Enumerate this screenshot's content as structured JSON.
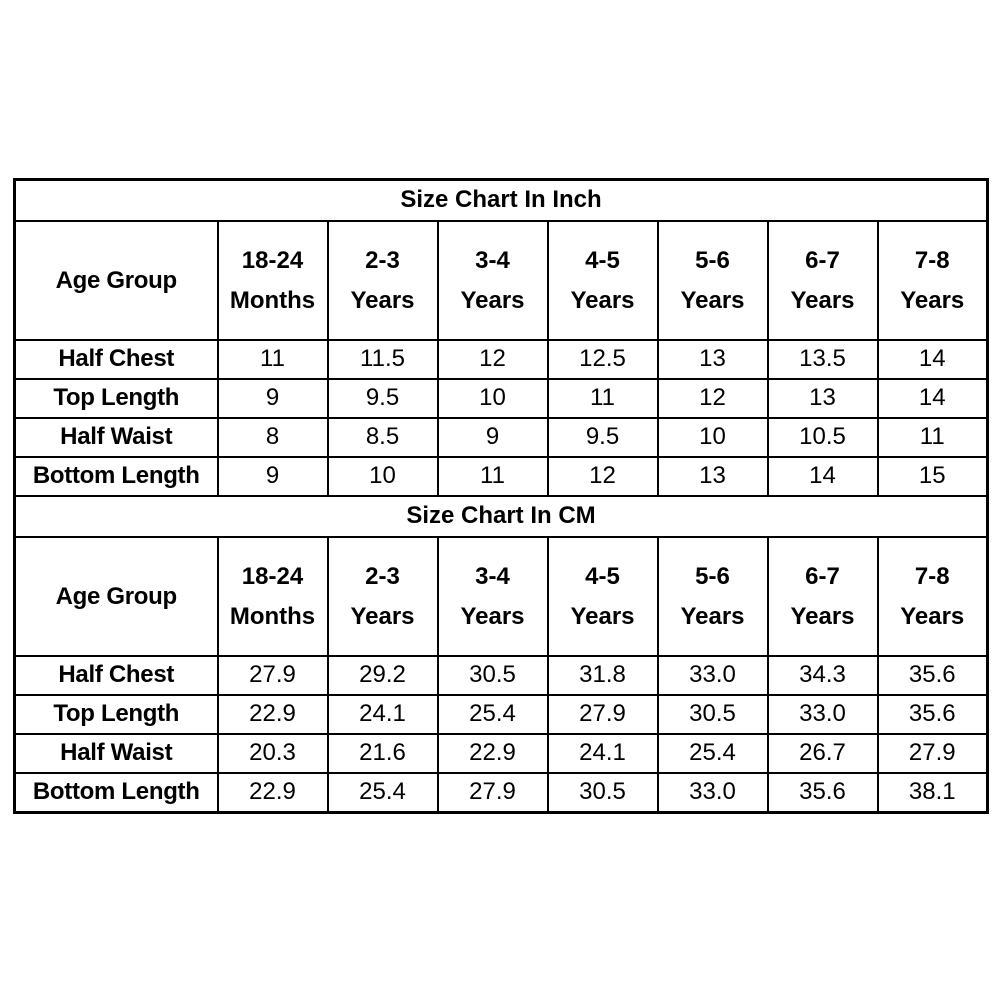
{
  "tables": [
    {
      "title": "Size Chart In Inch",
      "header_label": "Age Group",
      "columns": [
        {
          "line1": "18-24",
          "line2": "Months"
        },
        {
          "line1": "2-3",
          "line2": "Years"
        },
        {
          "line1": "3-4",
          "line2": "Years"
        },
        {
          "line1": "4-5",
          "line2": "Years"
        },
        {
          "line1": "5-6",
          "line2": "Years"
        },
        {
          "line1": "6-7",
          "line2": "Years"
        },
        {
          "line1": "7-8",
          "line2": "Years"
        }
      ],
      "rows": [
        {
          "label": "Half Chest",
          "values": [
            "11",
            "11.5",
            "12",
            "12.5",
            "13",
            "13.5",
            "14"
          ]
        },
        {
          "label": "Top Length",
          "values": [
            "9",
            "9.5",
            "10",
            "11",
            "12",
            "13",
            "14"
          ]
        },
        {
          "label": "Half Waist",
          "values": [
            "8",
            "8.5",
            "9",
            "9.5",
            "10",
            "10.5",
            "11"
          ]
        },
        {
          "label": "Bottom Length",
          "values": [
            "9",
            "10",
            "11",
            "12",
            "13",
            "14",
            "15"
          ]
        }
      ]
    },
    {
      "title": "Size Chart In CM",
      "header_label": "Age Group",
      "columns": [
        {
          "line1": "18-24",
          "line2": "Months"
        },
        {
          "line1": "2-3",
          "line2": "Years"
        },
        {
          "line1": "3-4",
          "line2": "Years"
        },
        {
          "line1": "4-5",
          "line2": "Years"
        },
        {
          "line1": "5-6",
          "line2": "Years"
        },
        {
          "line1": "6-7",
          "line2": "Years"
        },
        {
          "line1": "7-8",
          "line2": "Years"
        }
      ],
      "rows": [
        {
          "label": "Half Chest",
          "values": [
            "27.9",
            "29.2",
            "30.5",
            "31.8",
            "33.0",
            "34.3",
            "35.6"
          ]
        },
        {
          "label": "Top Length",
          "values": [
            "22.9",
            "24.1",
            "25.4",
            "27.9",
            "30.5",
            "33.0",
            "35.6"
          ]
        },
        {
          "label": "Half Waist",
          "values": [
            "20.3",
            "21.6",
            "22.9",
            "24.1",
            "25.4",
            "26.7",
            "27.9"
          ]
        },
        {
          "label": "Bottom Length",
          "values": [
            "22.9",
            "25.4",
            "27.9",
            "30.5",
            "33.0",
            "35.6",
            "38.1"
          ]
        }
      ]
    }
  ]
}
